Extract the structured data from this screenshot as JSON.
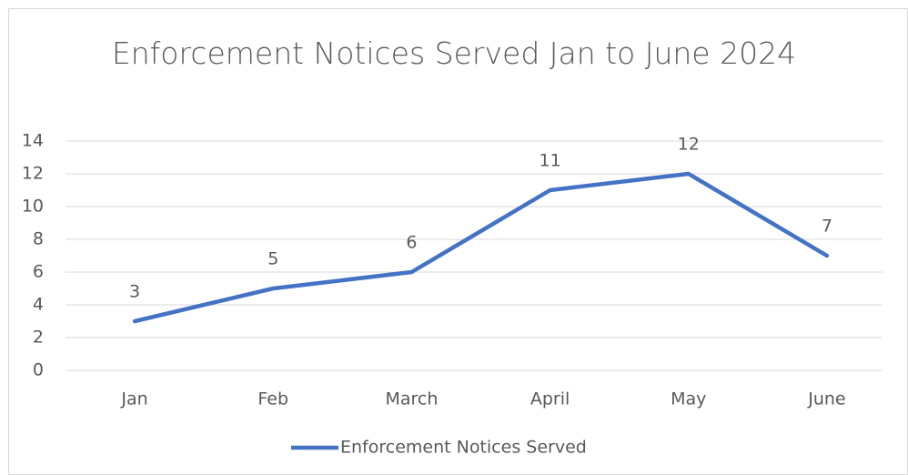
{
  "chart_data": {
    "type": "line",
    "title": "Enforcement Notices Served Jan to June 2024",
    "categories": [
      "Jan",
      "Feb",
      "March",
      "April",
      "May",
      "June"
    ],
    "series": [
      {
        "name": "Enforcement Notices Served",
        "color": "#4472c4",
        "values": [
          3,
          5,
          6,
          11,
          12,
          7
        ]
      }
    ],
    "ylim": [
      0,
      14
    ],
    "yticks": [
      0,
      2,
      4,
      6,
      8,
      10,
      12,
      14
    ],
    "grid": true,
    "legend": "bottom",
    "data_labels": true
  }
}
